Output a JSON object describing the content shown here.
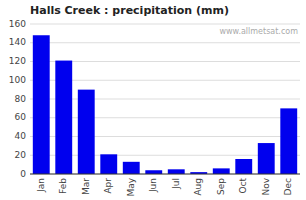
{
  "chart_data": {
    "type": "bar",
    "title": "Halls Creek : precipitation (mm)",
    "categories": [
      "Jan",
      "Feb",
      "Mar",
      "Apr",
      "May",
      "Jun",
      "Jul",
      "Aug",
      "Sep",
      "Oct",
      "Nov",
      "Dec"
    ],
    "values": [
      148,
      121,
      90,
      21,
      13,
      4,
      5,
      2,
      6,
      16,
      33,
      70
    ],
    "color": "#0000ee",
    "ylim": [
      0,
      160
    ],
    "yticks": [
      0,
      20,
      40,
      60,
      80,
      100,
      120,
      140,
      160
    ],
    "grid": true,
    "annotations": [
      "www.allmetsat.com"
    ]
  }
}
